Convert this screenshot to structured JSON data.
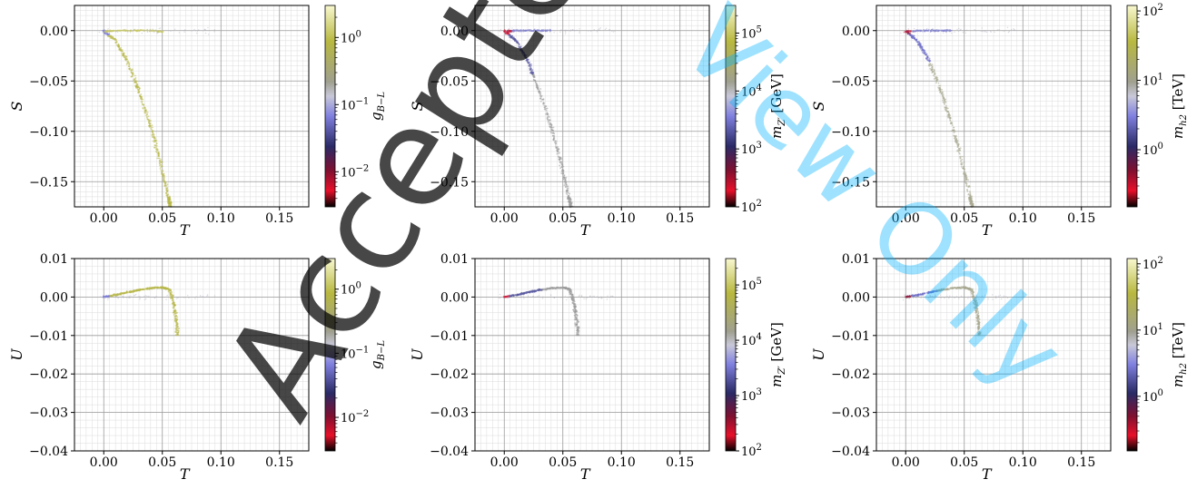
{
  "watermark": {
    "text": "Accepted Manuscript",
    "text2": "View Only"
  },
  "chart_data": [
    {
      "type": "scatter",
      "row": 0,
      "col": 0,
      "xlabel": "T",
      "ylabel": "S",
      "xlim": [
        -0.025,
        0.175
      ],
      "ylim": [
        -0.175,
        0.025
      ],
      "xticks": [
        "0.00",
        "0.05",
        "0.10",
        "0.15"
      ],
      "xtick_values": [
        0,
        0.05,
        0.1,
        0.15
      ],
      "yticks": [
        "0.00",
        "−0.05",
        "−0.10",
        "−0.15"
      ],
      "ytick_values": [
        0,
        -0.05,
        -0.1,
        -0.15
      ],
      "colorbar": {
        "label": "g_{B−L}",
        "scale": "log",
        "range": [
          0.003,
          3
        ],
        "ticks": [
          {
            "value": 1,
            "label": "10^0"
          },
          {
            "value": 0.1,
            "label": "10^−1"
          },
          {
            "value": 0.01,
            "label": "10^−2"
          }
        ]
      },
      "grid": true,
      "curve": [
        [
          0.0,
          0.0
        ],
        [
          0.01,
          -0.01
        ],
        [
          0.02,
          -0.03
        ],
        [
          0.03,
          -0.06
        ],
        [
          0.04,
          -0.095
        ],
        [
          0.048,
          -0.13
        ],
        [
          0.055,
          -0.165
        ],
        [
          0.057,
          -0.175
        ]
      ],
      "branch": [
        [
          0.0,
          -0.001
        ],
        [
          0.01,
          0.0
        ],
        [
          0.02,
          0.0
        ],
        [
          0.03,
          0.0
        ],
        [
          0.04,
          0.0
        ],
        [
          0.05,
          -0.001
        ]
      ]
    },
    {
      "type": "scatter",
      "row": 0,
      "col": 1,
      "xlabel": "T",
      "ylabel": "S",
      "xlim": [
        -0.025,
        0.175
      ],
      "ylim": [
        -0.175,
        0.025
      ],
      "xticks": [
        "0.00",
        "0.05",
        "0.10",
        "0.15"
      ],
      "xtick_values": [
        0,
        0.05,
        0.1,
        0.15
      ],
      "yticks": [
        "0.00",
        "−0.05",
        "−0.10",
        "−0.15"
      ],
      "ytick_values": [
        0,
        -0.05,
        -0.1,
        -0.15
      ],
      "colorbar": {
        "label": "m_{Z′} [GeV]",
        "scale": "log",
        "range": [
          100,
          300000
        ],
        "ticks": [
          {
            "value": 100000,
            "label": "10^5"
          },
          {
            "value": 10000,
            "label": "10^4"
          },
          {
            "value": 1000,
            "label": "10^3"
          },
          {
            "value": 100,
            "label": "10^2"
          }
        ]
      },
      "grid": true,
      "curve": [
        [
          0.0,
          0.0
        ],
        [
          0.01,
          -0.01
        ],
        [
          0.02,
          -0.03
        ],
        [
          0.03,
          -0.06
        ],
        [
          0.04,
          -0.095
        ],
        [
          0.048,
          -0.13
        ],
        [
          0.055,
          -0.165
        ],
        [
          0.057,
          -0.175
        ]
      ],
      "branch": [
        [
          0.0,
          -0.001
        ],
        [
          0.01,
          0.0
        ],
        [
          0.02,
          0.0
        ],
        [
          0.03,
          0.0
        ],
        [
          0.04,
          0.0
        ]
      ]
    },
    {
      "type": "scatter",
      "row": 0,
      "col": 2,
      "xlabel": "T",
      "ylabel": "S",
      "xlim": [
        -0.025,
        0.175
      ],
      "ylim": [
        -0.175,
        0.025
      ],
      "xticks": [
        "0.00",
        "0.05",
        "0.10",
        "0.15"
      ],
      "xtick_values": [
        0,
        0.05,
        0.1,
        0.15
      ],
      "yticks": [
        "0.00",
        "−0.05",
        "−0.10",
        "−0.15"
      ],
      "ytick_values": [
        0,
        -0.05,
        -0.1,
        -0.15
      ],
      "colorbar": {
        "label": "m_{h_2} [TeV]",
        "scale": "log",
        "range": [
          0.15,
          120
        ],
        "ticks": [
          {
            "value": 100,
            "label": "10^2"
          },
          {
            "value": 10,
            "label": "10^1"
          },
          {
            "value": 1,
            "label": "10^0"
          }
        ]
      },
      "grid": true,
      "curve": [
        [
          0.0,
          0.0
        ],
        [
          0.01,
          -0.01
        ],
        [
          0.02,
          -0.03
        ],
        [
          0.03,
          -0.06
        ],
        [
          0.04,
          -0.095
        ],
        [
          0.048,
          -0.13
        ],
        [
          0.055,
          -0.165
        ],
        [
          0.057,
          -0.175
        ]
      ],
      "branch": [
        [
          0.0,
          -0.001
        ],
        [
          0.01,
          0.0
        ],
        [
          0.02,
          0.0
        ],
        [
          0.03,
          0.0
        ],
        [
          0.04,
          0.0
        ]
      ]
    },
    {
      "type": "scatter",
      "row": 1,
      "col": 0,
      "xlabel": "T",
      "ylabel": "U",
      "xlim": [
        -0.025,
        0.175
      ],
      "ylim": [
        -0.04,
        0.01
      ],
      "xticks": [
        "0.00",
        "0.05",
        "0.10",
        "0.15"
      ],
      "xtick_values": [
        0,
        0.05,
        0.1,
        0.15
      ],
      "yticks": [
        "0.01",
        "0.00",
        "−0.01",
        "−0.02",
        "−0.03",
        "−0.04"
      ],
      "ytick_values": [
        0.01,
        0,
        -0.01,
        -0.02,
        -0.03,
        -0.04
      ],
      "colorbar": {
        "label": "g_{B−L}",
        "scale": "log",
        "range": [
          0.003,
          3
        ],
        "ticks": [
          {
            "value": 1,
            "label": "10^0"
          },
          {
            "value": 0.1,
            "label": "10^−1"
          },
          {
            "value": 0.01,
            "label": "10^−2"
          }
        ]
      },
      "grid": true,
      "curve": [
        [
          0.0,
          0.0
        ],
        [
          0.01,
          0.0005
        ],
        [
          0.02,
          0.0012
        ],
        [
          0.03,
          0.0018
        ],
        [
          0.04,
          0.0023
        ],
        [
          0.05,
          0.0025
        ],
        [
          0.056,
          0.002
        ],
        [
          0.06,
          -0.002
        ],
        [
          0.062,
          -0.006
        ],
        [
          0.063,
          -0.01
        ]
      ],
      "branch": []
    },
    {
      "type": "scatter",
      "row": 1,
      "col": 1,
      "xlabel": "T",
      "ylabel": "U",
      "xlim": [
        -0.025,
        0.175
      ],
      "ylim": [
        -0.04,
        0.01
      ],
      "xticks": [
        "0.00",
        "0.05",
        "0.10",
        "0.15"
      ],
      "xtick_values": [
        0,
        0.05,
        0.1,
        0.15
      ],
      "yticks": [
        "0.01",
        "0.00",
        "−0.01",
        "−0.02",
        "−0.03",
        "−0.04"
      ],
      "ytick_values": [
        0.01,
        0,
        -0.01,
        -0.02,
        -0.03,
        -0.04
      ],
      "colorbar": {
        "label": "m_{Z′} [GeV]",
        "scale": "log",
        "range": [
          100,
          300000
        ],
        "ticks": [
          {
            "value": 100000,
            "label": "10^5"
          },
          {
            "value": 10000,
            "label": "10^4"
          },
          {
            "value": 1000,
            "label": "10^3"
          },
          {
            "value": 100,
            "label": "10^2"
          }
        ]
      },
      "grid": true,
      "curve": [
        [
          0.0,
          0.0
        ],
        [
          0.01,
          0.0005
        ],
        [
          0.02,
          0.0012
        ],
        [
          0.03,
          0.0018
        ],
        [
          0.04,
          0.0023
        ],
        [
          0.05,
          0.0025
        ],
        [
          0.056,
          0.002
        ],
        [
          0.06,
          -0.002
        ],
        [
          0.062,
          -0.006
        ],
        [
          0.063,
          -0.01
        ]
      ],
      "branch": []
    },
    {
      "type": "scatter",
      "row": 1,
      "col": 2,
      "xlabel": "T",
      "ylabel": "U",
      "xlim": [
        -0.025,
        0.175
      ],
      "ylim": [
        -0.04,
        0.01
      ],
      "xticks": [
        "0.00",
        "0.05",
        "0.10",
        "0.15"
      ],
      "xtick_values": [
        0,
        0.05,
        0.1,
        0.15
      ],
      "yticks": [
        "0.01",
        "0.00",
        "−0.01",
        "−0.02",
        "−0.03",
        "−0.04"
      ],
      "ytick_values": [
        0.01,
        0,
        -0.01,
        -0.02,
        -0.03,
        -0.04
      ],
      "colorbar": {
        "label": "m_{h_2} [TeV]",
        "scale": "log",
        "range": [
          0.15,
          120
        ],
        "ticks": [
          {
            "value": 100,
            "label": "10^2"
          },
          {
            "value": 10,
            "label": "10^1"
          },
          {
            "value": 1,
            "label": "10^0"
          }
        ]
      },
      "grid": true,
      "curve": [
        [
          0.0,
          0.0
        ],
        [
          0.01,
          0.0005
        ],
        [
          0.02,
          0.0012
        ],
        [
          0.03,
          0.0018
        ],
        [
          0.04,
          0.0023
        ],
        [
          0.05,
          0.0025
        ],
        [
          0.056,
          0.002
        ],
        [
          0.06,
          -0.002
        ],
        [
          0.062,
          -0.006
        ],
        [
          0.063,
          -0.01
        ]
      ],
      "branch": []
    }
  ]
}
